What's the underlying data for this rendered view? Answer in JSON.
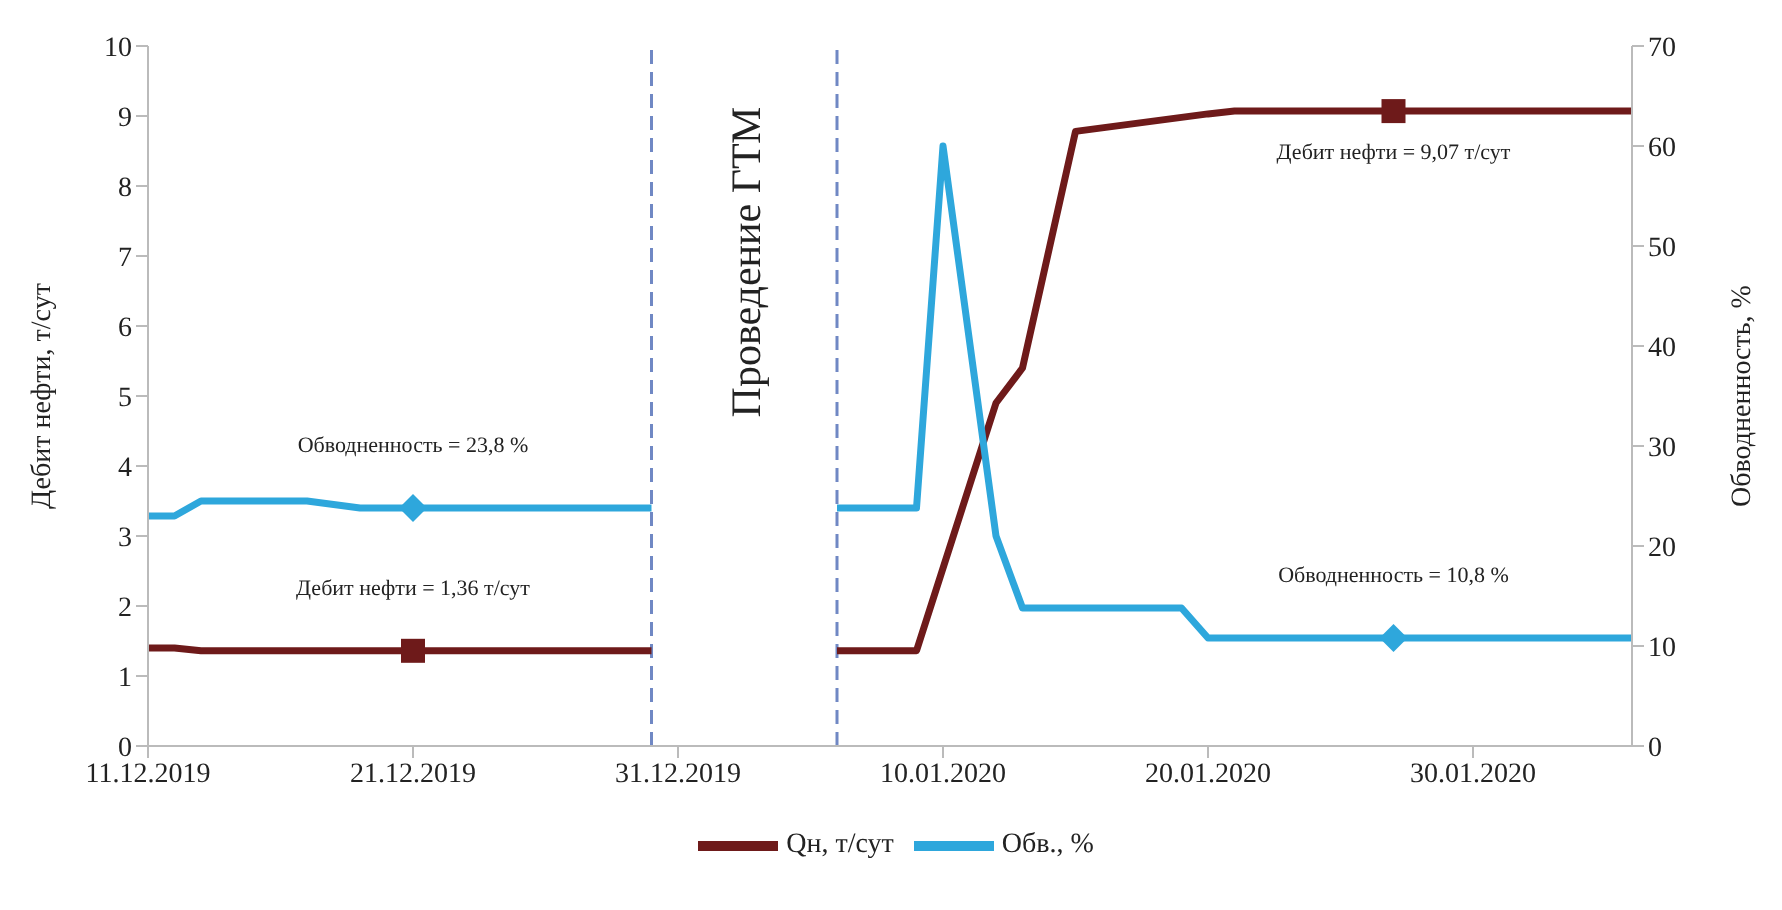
{
  "chart_data": {
    "type": "line",
    "ylabel": "Дебит нефти, т/сут",
    "y2label": "Обводненность, %",
    "xlim": [
      "2019-12-11",
      "2020-02-05"
    ],
    "xticks": [
      {
        "value": "2019-12-11",
        "label": "11.12.2019"
      },
      {
        "value": "2019-12-21",
        "label": "21.12.2019"
      },
      {
        "value": "2019-12-31",
        "label": "31.12.2019"
      },
      {
        "value": "2020-01-10",
        "label": "10.01.2020"
      },
      {
        "value": "2020-01-20",
        "label": "20.01.2020"
      },
      {
        "value": "2020-01-30",
        "label": "30.01.2020"
      }
    ],
    "ylim": [
      0,
      10
    ],
    "yticks": [
      0,
      1,
      2,
      3,
      4,
      5,
      6,
      7,
      8,
      9,
      10
    ],
    "y2lim": [
      0,
      70
    ],
    "y2ticks": [
      0,
      10,
      20,
      30,
      40,
      50,
      60,
      70
    ],
    "grid": false,
    "legend": "bottom",
    "marker": "none",
    "line_style": "solid",
    "series": [
      {
        "name": "Qн, т/сут",
        "color": "#6e1a1a",
        "x": [
          "2019-12-11",
          "2019-12-12",
          "2019-12-13",
          "2019-12-30",
          "2020-01-01",
          "2020-01-06",
          "2020-01-09",
          "2020-01-12",
          "2020-01-13",
          "2020-01-15",
          "2020-01-20",
          "2020-01-21",
          "2020-02-05"
        ],
        "values": [
          1.4,
          1.4,
          1.36,
          1.36,
          null,
          1.36,
          1.36,
          4.9,
          5.4,
          8.78,
          9.03,
          9.07,
          9.07
        ]
      },
      {
        "name": "Обв., %",
        "color": "#2ea7dc",
        "axis": "y2",
        "x": [
          "2019-12-11",
          "2019-12-12",
          "2019-12-13",
          "2019-12-17",
          "2019-12-19",
          "2019-12-30",
          "2020-01-01",
          "2020-01-06",
          "2020-01-09",
          "2020-01-10",
          "2020-01-12",
          "2020-01-13",
          "2020-01-19",
          "2020-01-20",
          "2020-02-05"
        ],
        "values": [
          23,
          23,
          24.5,
          24.5,
          23.8,
          23.8,
          null,
          23.8,
          23.8,
          60,
          21,
          13.8,
          13.8,
          10.8,
          10.8
        ]
      },
      {
        "type": "scatter",
        "marker": "square",
        "color": "#6e1a1a",
        "x": [
          "2019-12-21",
          "2020-01-27"
        ],
        "values": [
          1.36,
          9.07
        ],
        "value_labels": [
          "Дебит нефти = 1,36 т/сут",
          "Дебит нефти = 9,07 т/сут"
        ]
      },
      {
        "type": "scatter",
        "marker": "diamond",
        "color": "#2ea7dc",
        "axis": "y2",
        "x": [
          "2019-12-21",
          "2020-01-27"
        ],
        "values": [
          23.8,
          10.8
        ],
        "value_labels": [
          "Обводненность = 23,8 %",
          "Обводненность = 10,8 %"
        ]
      }
    ],
    "ref_lines": [
      {
        "axis": "x",
        "value": "2019-12-30",
        "color": "#7088c4",
        "line_style": "dashed"
      },
      {
        "axis": "x",
        "value": "2020-01-06",
        "color": "#7088c4",
        "line_style": "dashed"
      }
    ],
    "annotations": [
      "Проведение ГТМ"
    ]
  }
}
